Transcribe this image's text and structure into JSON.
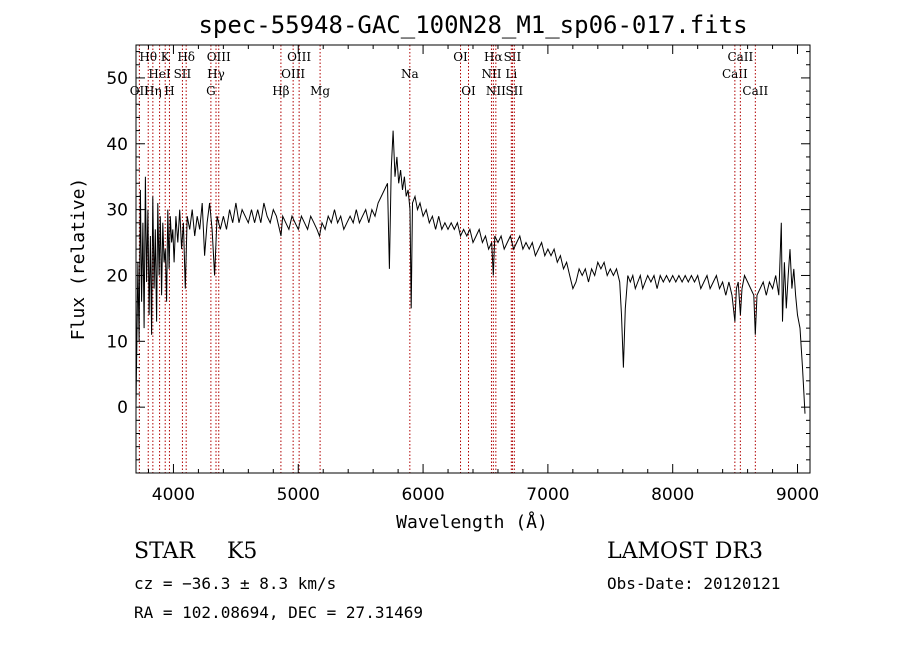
{
  "chart_data": {
    "type": "line",
    "title": "spec-55948-GAC_100N28_M1_sp06-017.fits",
    "xlabel": "Wavelength (Å)",
    "ylabel": "Flux (relative)",
    "xlim": [
      3700,
      9100
    ],
    "ylim": [
      -10,
      55
    ],
    "x_ticks": [
      4000,
      5000,
      6000,
      7000,
      8000,
      9000
    ],
    "y_ticks": [
      0,
      10,
      20,
      30,
      40,
      50
    ],
    "grid": false,
    "series": [
      {
        "points": [
          [
            3700,
            0
          ],
          [
            3715,
            22
          ],
          [
            3725,
            10
          ],
          [
            3735,
            33
          ],
          [
            3745,
            16
          ],
          [
            3755,
            28
          ],
          [
            3765,
            12
          ],
          [
            3775,
            35
          ],
          [
            3785,
            19
          ],
          [
            3795,
            30
          ],
          [
            3805,
            14
          ],
          [
            3815,
            26
          ],
          [
            3825,
            11
          ],
          [
            3835,
            32
          ],
          [
            3845,
            18
          ],
          [
            3855,
            27
          ],
          [
            3865,
            13
          ],
          [
            3875,
            31
          ],
          [
            3885,
            20
          ],
          [
            3895,
            29
          ],
          [
            3905,
            17
          ],
          [
            3915,
            28
          ],
          [
            3925,
            22
          ],
          [
            3935,
            24
          ],
          [
            3945,
            16
          ],
          [
            3955,
            30
          ],
          [
            3965,
            21
          ],
          [
            3975,
            29
          ],
          [
            3985,
            25
          ],
          [
            3995,
            27
          ],
          [
            4005,
            22
          ],
          [
            4020,
            29
          ],
          [
            4035,
            25
          ],
          [
            4050,
            30
          ],
          [
            4065,
            24
          ],
          [
            4080,
            28
          ],
          [
            4095,
            18
          ],
          [
            4110,
            29
          ],
          [
            4130,
            27
          ],
          [
            4150,
            30
          ],
          [
            4170,
            26
          ],
          [
            4190,
            29
          ],
          [
            4210,
            27
          ],
          [
            4230,
            31
          ],
          [
            4250,
            23
          ],
          [
            4270,
            28
          ],
          [
            4290,
            31
          ],
          [
            4310,
            27
          ],
          [
            4330,
            20
          ],
          [
            4350,
            29
          ],
          [
            4375,
            27
          ],
          [
            4400,
            29
          ],
          [
            4425,
            27
          ],
          [
            4450,
            30
          ],
          [
            4475,
            28
          ],
          [
            4500,
            31
          ],
          [
            4525,
            28
          ],
          [
            4550,
            30
          ],
          [
            4575,
            29
          ],
          [
            4600,
            28
          ],
          [
            4625,
            30
          ],
          [
            4650,
            28
          ],
          [
            4675,
            30
          ],
          [
            4700,
            28
          ],
          [
            4725,
            31
          ],
          [
            4750,
            29
          ],
          [
            4775,
            28
          ],
          [
            4800,
            30
          ],
          [
            4825,
            29
          ],
          [
            4850,
            27
          ],
          [
            4862,
            26
          ],
          [
            4875,
            29
          ],
          [
            4900,
            28
          ],
          [
            4925,
            27
          ],
          [
            4950,
            29
          ],
          [
            4975,
            28
          ],
          [
            5000,
            27
          ],
          [
            5025,
            29
          ],
          [
            5050,
            28
          ],
          [
            5075,
            27
          ],
          [
            5100,
            29
          ],
          [
            5125,
            28
          ],
          [
            5150,
            27
          ],
          [
            5170,
            26
          ],
          [
            5190,
            28
          ],
          [
            5215,
            27
          ],
          [
            5240,
            29
          ],
          [
            5265,
            28
          ],
          [
            5290,
            30
          ],
          [
            5315,
            28
          ],
          [
            5340,
            29
          ],
          [
            5365,
            27
          ],
          [
            5390,
            28
          ],
          [
            5415,
            29
          ],
          [
            5440,
            28
          ],
          [
            5465,
            30
          ],
          [
            5490,
            28
          ],
          [
            5515,
            29
          ],
          [
            5540,
            30
          ],
          [
            5565,
            28
          ],
          [
            5590,
            30
          ],
          [
            5615,
            29
          ],
          [
            5640,
            31
          ],
          [
            5665,
            32
          ],
          [
            5690,
            33
          ],
          [
            5715,
            34
          ],
          [
            5730,
            21
          ],
          [
            5745,
            36
          ],
          [
            5760,
            42
          ],
          [
            5775,
            35
          ],
          [
            5790,
            38
          ],
          [
            5805,
            34
          ],
          [
            5820,
            36
          ],
          [
            5835,
            33
          ],
          [
            5850,
            35
          ],
          [
            5865,
            32
          ],
          [
            5880,
            33
          ],
          [
            5895,
            30
          ],
          [
            5905,
            15
          ],
          [
            5915,
            31
          ],
          [
            5935,
            32
          ],
          [
            5955,
            30
          ],
          [
            5975,
            31
          ],
          [
            6000,
            29
          ],
          [
            6025,
            30
          ],
          [
            6050,
            28
          ],
          [
            6075,
            29
          ],
          [
            6100,
            27
          ],
          [
            6125,
            29
          ],
          [
            6150,
            27
          ],
          [
            6175,
            28
          ],
          [
            6200,
            27
          ],
          [
            6225,
            28
          ],
          [
            6250,
            27
          ],
          [
            6275,
            28
          ],
          [
            6300,
            26
          ],
          [
            6325,
            27
          ],
          [
            6350,
            26
          ],
          [
            6375,
            27
          ],
          [
            6400,
            25
          ],
          [
            6425,
            26
          ],
          [
            6450,
            27
          ],
          [
            6475,
            25
          ],
          [
            6500,
            26
          ],
          [
            6525,
            24
          ],
          [
            6550,
            25
          ],
          [
            6563,
            20
          ],
          [
            6575,
            26
          ],
          [
            6600,
            25
          ],
          [
            6625,
            26
          ],
          [
            6650,
            24
          ],
          [
            6675,
            25
          ],
          [
            6700,
            26
          ],
          [
            6725,
            24
          ],
          [
            6750,
            25
          ],
          [
            6775,
            26
          ],
          [
            6800,
            24
          ],
          [
            6825,
            25
          ],
          [
            6850,
            24
          ],
          [
            6875,
            25
          ],
          [
            6900,
            23
          ],
          [
            6925,
            24
          ],
          [
            6950,
            25
          ],
          [
            6975,
            23
          ],
          [
            7000,
            24
          ],
          [
            7025,
            23
          ],
          [
            7050,
            24
          ],
          [
            7075,
            22
          ],
          [
            7100,
            23
          ],
          [
            7125,
            21
          ],
          [
            7150,
            22
          ],
          [
            7175,
            20
          ],
          [
            7200,
            18
          ],
          [
            7225,
            19
          ],
          [
            7250,
            21
          ],
          [
            7275,
            20
          ],
          [
            7300,
            21
          ],
          [
            7325,
            19
          ],
          [
            7350,
            21
          ],
          [
            7375,
            20
          ],
          [
            7400,
            22
          ],
          [
            7425,
            21
          ],
          [
            7450,
            22
          ],
          [
            7475,
            20
          ],
          [
            7500,
            21
          ],
          [
            7525,
            20
          ],
          [
            7550,
            21
          ],
          [
            7575,
            19
          ],
          [
            7590,
            14
          ],
          [
            7605,
            6
          ],
          [
            7620,
            15
          ],
          [
            7640,
            20
          ],
          [
            7660,
            19
          ],
          [
            7680,
            20
          ],
          [
            7700,
            18
          ],
          [
            7720,
            19
          ],
          [
            7740,
            20
          ],
          [
            7760,
            18
          ],
          [
            7780,
            19
          ],
          [
            7800,
            20
          ],
          [
            7825,
            19
          ],
          [
            7850,
            20
          ],
          [
            7875,
            18
          ],
          [
            7900,
            20
          ],
          [
            7925,
            19
          ],
          [
            7950,
            20
          ],
          [
            7975,
            19
          ],
          [
            8000,
            20
          ],
          [
            8025,
            19
          ],
          [
            8050,
            20
          ],
          [
            8075,
            19
          ],
          [
            8100,
            20
          ],
          [
            8125,
            19
          ],
          [
            8150,
            20
          ],
          [
            8175,
            19
          ],
          [
            8200,
            20
          ],
          [
            8225,
            18
          ],
          [
            8250,
            19
          ],
          [
            8275,
            20
          ],
          [
            8300,
            18
          ],
          [
            8325,
            19
          ],
          [
            8350,
            20
          ],
          [
            8375,
            18
          ],
          [
            8400,
            19
          ],
          [
            8425,
            17
          ],
          [
            8450,
            19
          ],
          [
            8475,
            17
          ],
          [
            8498,
            13
          ],
          [
            8510,
            18
          ],
          [
            8525,
            19
          ],
          [
            8542,
            14
          ],
          [
            8555,
            18
          ],
          [
            8575,
            20
          ],
          [
            8600,
            19
          ],
          [
            8625,
            18
          ],
          [
            8650,
            17
          ],
          [
            8662,
            11
          ],
          [
            8675,
            17
          ],
          [
            8700,
            18
          ],
          [
            8725,
            19
          ],
          [
            8750,
            17
          ],
          [
            8775,
            19
          ],
          [
            8800,
            18
          ],
          [
            8825,
            20
          ],
          [
            8850,
            17
          ],
          [
            8870,
            28
          ],
          [
            8880,
            13
          ],
          [
            8895,
            22
          ],
          [
            8910,
            15
          ],
          [
            8925,
            20
          ],
          [
            8940,
            24
          ],
          [
            8955,
            18
          ],
          [
            8970,
            21
          ],
          [
            8985,
            17
          ],
          [
            9000,
            14
          ],
          [
            9020,
            12
          ],
          [
            9040,
            6
          ],
          [
            9060,
            -1
          ]
        ]
      }
    ],
    "lines": [
      {
        "wavelength": 3727,
        "label": "OII",
        "row": 3
      },
      {
        "wavelength": 3798,
        "label": "Hθ",
        "row": 1
      },
      {
        "wavelength": 3835,
        "label": "Hη",
        "row": 3
      },
      {
        "wavelength": 3889,
        "label": "HeI",
        "row": 2
      },
      {
        "wavelength": 3934,
        "label": "K",
        "row": 1
      },
      {
        "wavelength": 3968,
        "label": "H",
        "row": 3
      },
      {
        "wavelength": 4072,
        "label": "SII",
        "row": 2
      },
      {
        "wavelength": 4102,
        "label": "Hδ",
        "row": 1
      },
      {
        "wavelength": 4300,
        "label": "G",
        "row": 3
      },
      {
        "wavelength": 4341,
        "label": "Hγ",
        "row": 2
      },
      {
        "wavelength": 4363,
        "label": "OIII",
        "row": 1
      },
      {
        "wavelength": 4861,
        "label": "Hβ",
        "row": 3
      },
      {
        "wavelength": 4959,
        "label": "OIII",
        "row": 2
      },
      {
        "wavelength": 5007,
        "label": "OIII",
        "row": 1
      },
      {
        "wavelength": 5175,
        "label": "Mg",
        "row": 3
      },
      {
        "wavelength": 5894,
        "label": "Na",
        "row": 2
      },
      {
        "wavelength": 6300,
        "label": "OI",
        "row": 1
      },
      {
        "wavelength": 6364,
        "label": "OI",
        "row": 3
      },
      {
        "wavelength": 6548,
        "label": "NII",
        "row": 2
      },
      {
        "wavelength": 6563,
        "label": "Hα",
        "row": 1
      },
      {
        "wavelength": 6583,
        "label": "NII",
        "row": 3
      },
      {
        "wavelength": 6707,
        "label": "Li",
        "row": 2
      },
      {
        "wavelength": 6716,
        "label": "SII",
        "row": 1
      },
      {
        "wavelength": 6731,
        "label": "SII",
        "row": 3
      },
      {
        "wavelength": 8498,
        "label": "CaII",
        "row": 2
      },
      {
        "wavelength": 8542,
        "label": "CaII",
        "row": 1
      },
      {
        "wavelength": 8662,
        "label": "CaII",
        "row": 3
      }
    ]
  },
  "colors": {
    "spectrum": "#000000",
    "line_marker": "#b00000",
    "axes": "#000000"
  },
  "info": {
    "class_label": "STAR",
    "subclass_label": "K5",
    "survey": "LAMOST DR3",
    "cz": "cz = −36.3 ± 8.3 km/s",
    "obs_date": "Obs-Date: 20120121",
    "radec": "RA = 102.08694, DEC =  27.31469"
  }
}
